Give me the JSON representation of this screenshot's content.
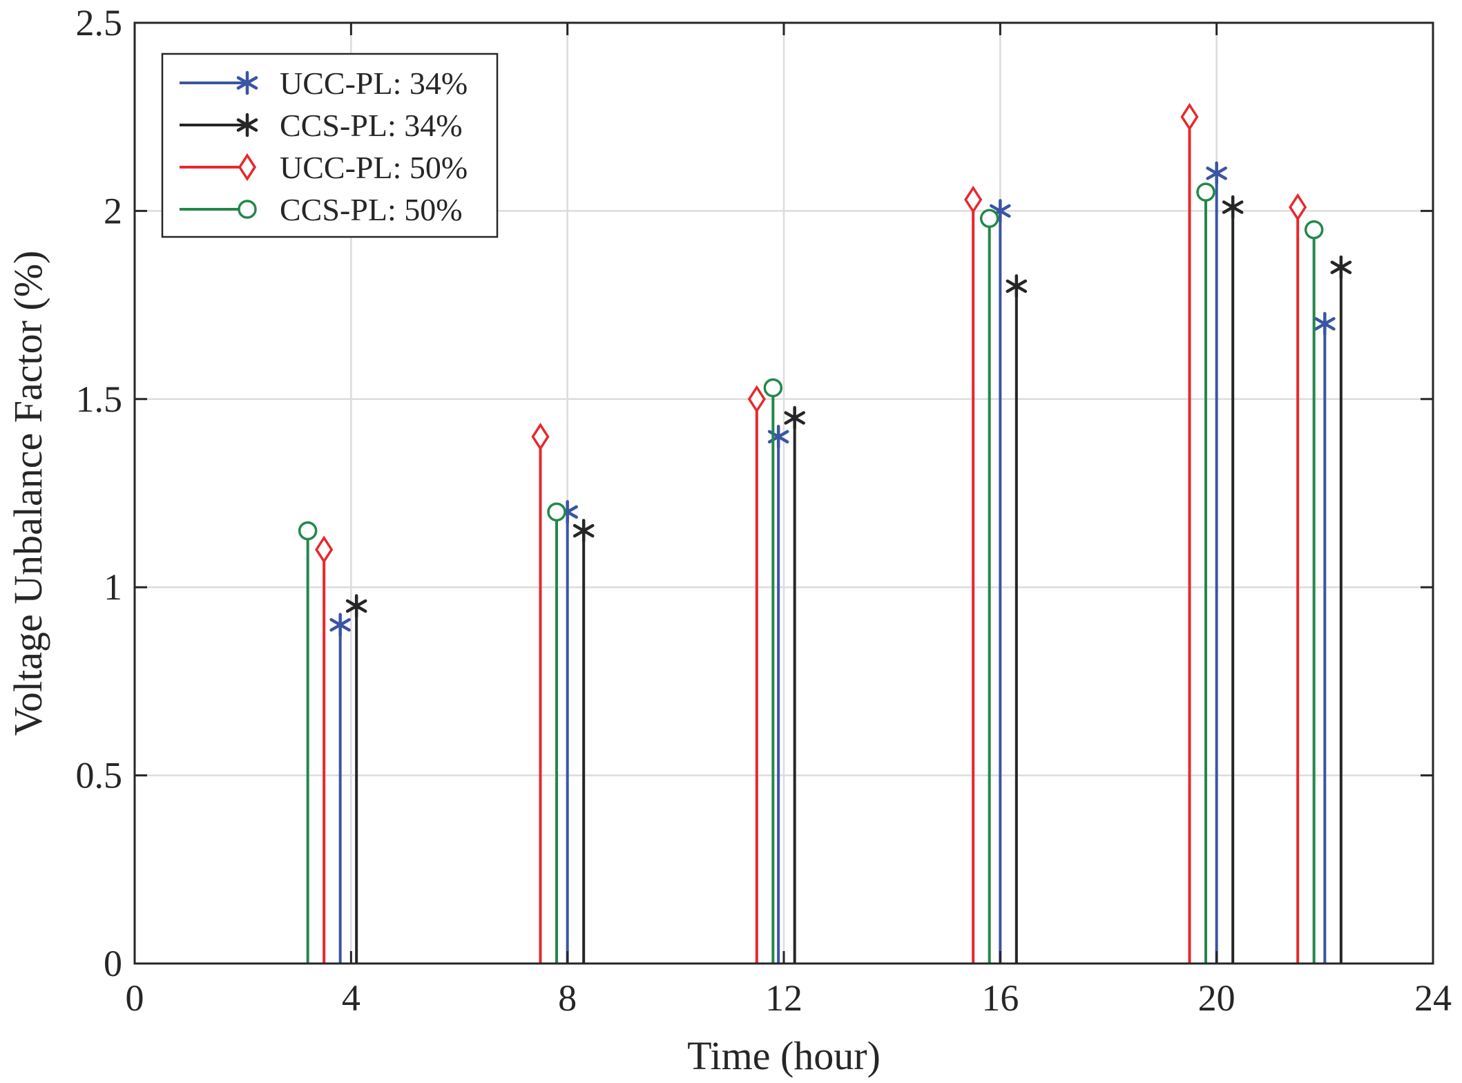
{
  "chart_data": {
    "type": "stem",
    "title": "",
    "xlabel": "Time (hour)",
    "ylabel": "Voltage Unbalance Factor (%)",
    "xlim": [
      0,
      24
    ],
    "ylim": [
      0,
      2.5
    ],
    "xticks": [
      0,
      4,
      8,
      12,
      16,
      20,
      24
    ],
    "yticks": [
      0,
      0.5,
      1,
      1.5,
      2,
      2.5
    ],
    "xtick_labels": [
      "0",
      "4",
      "8",
      "12",
      "16",
      "20",
      "24"
    ],
    "ytick_labels": [
      "0",
      "0.5",
      "1",
      "1.5",
      "2",
      "2.5"
    ],
    "grid": true,
    "legend_position": "top-left",
    "series": [
      {
        "name": "UCC-PL: 34%",
        "color": "#3a55a4",
        "marker": "asterisk",
        "x": [
          3.8,
          8.0,
          11.9,
          16.0,
          20.0,
          22.0
        ],
        "values": [
          0.9,
          1.2,
          1.4,
          2.0,
          2.1,
          1.7
        ]
      },
      {
        "name": "CCS-PL: 34%",
        "color": "#262626",
        "marker": "asterisk",
        "x": [
          4.1,
          8.3,
          12.2,
          16.3,
          20.3,
          22.3
        ],
        "values": [
          0.95,
          1.15,
          1.45,
          1.8,
          2.01,
          1.85
        ]
      },
      {
        "name": "UCC-PL: 50%",
        "color": "#e8282b",
        "marker": "diamond",
        "x": [
          3.5,
          7.5,
          11.5,
          15.5,
          19.5,
          21.5
        ],
        "values": [
          1.1,
          1.4,
          1.5,
          2.03,
          2.25,
          2.01
        ]
      },
      {
        "name": "CCS-PL: 50%",
        "color": "#23884a",
        "marker": "circle",
        "x": [
          3.2,
          7.8,
          11.8,
          15.8,
          19.8,
          21.8
        ],
        "values": [
          1.15,
          1.2,
          1.53,
          1.98,
          2.05,
          1.95
        ]
      }
    ]
  }
}
